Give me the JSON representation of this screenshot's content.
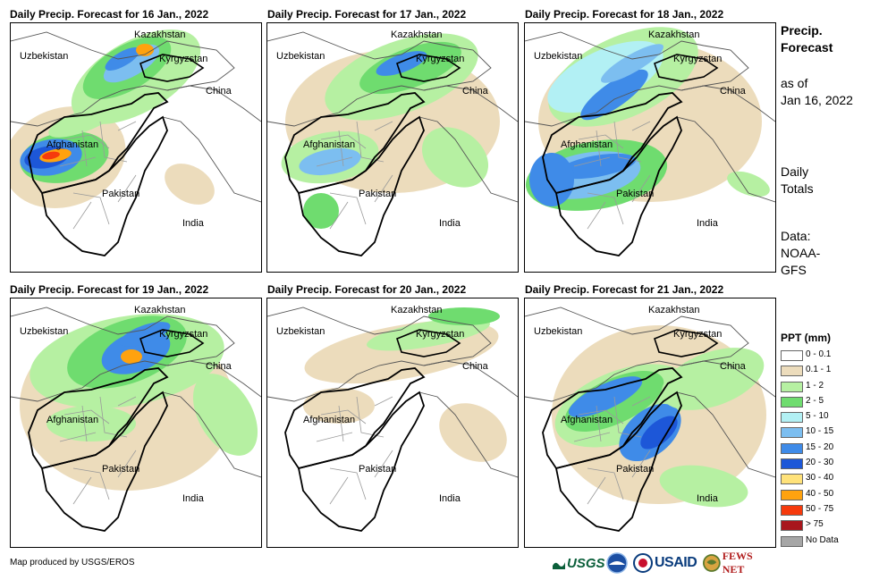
{
  "panels": [
    {
      "title": "Daily Precip. Forecast for 16 Jan., 2022",
      "intensity": "high"
    },
    {
      "title": "Daily Precip. Forecast for 17 Jan., 2022",
      "intensity": "medium"
    },
    {
      "title": "Daily Precip. Forecast for 18 Jan., 2022",
      "intensity": "high-west"
    },
    {
      "title": "Daily Precip. Forecast for 19 Jan., 2022",
      "intensity": "medium-north"
    },
    {
      "title": "Daily Precip. Forecast for 20 Jan., 2022",
      "intensity": "low"
    },
    {
      "title": "Daily Precip. Forecast for 21 Jan., 2022",
      "intensity": "medium-central"
    }
  ],
  "country_labels": {
    "kazakhstan": "Kazakhstan",
    "uzbekistan": "Uzbekistan",
    "kyrgyzstan": "Kyrgyzstan",
    "china": "China",
    "afghanistan": "Afghanistan",
    "pakistan": "Pakistan",
    "india": "India"
  },
  "sidebar": {
    "heading_line1": "Precip.",
    "heading_line2": "Forecast",
    "asof_line1": "as of",
    "asof_line2": "Jan 16, 2022",
    "totals_line1": "Daily",
    "totals_line2": "Totals",
    "data_line1": "Data:",
    "data_line2": "NOAA-",
    "data_line3": "GFS"
  },
  "legend": {
    "title": "PPT (mm)",
    "items": [
      {
        "label": "0 - 0.1",
        "color": "#ffffff"
      },
      {
        "label": "0.1 - 1",
        "color": "#ecdcbc"
      },
      {
        "label": "1 - 2",
        "color": "#b6f0a2"
      },
      {
        "label": "2 - 5",
        "color": "#6fdc6f"
      },
      {
        "label": "5 - 10",
        "color": "#b2f0f4"
      },
      {
        "label": "10 - 15",
        "color": "#7cbef0"
      },
      {
        "label": "15 - 20",
        "color": "#3f8be8"
      },
      {
        "label": "20 - 30",
        "color": "#1d57d8"
      },
      {
        "label": "30 - 40",
        "color": "#ffe27a"
      },
      {
        "label": "40 - 50",
        "color": "#ffa20e"
      },
      {
        "label": "50 - 75",
        "color": "#f63a0c"
      },
      {
        "label": "> 75",
        "color": "#a8161c"
      },
      {
        "label": "No Data",
        "color": "#a6a6a6"
      }
    ]
  },
  "credit": "Map produced by USGS/EROS",
  "logos": {
    "usgs": "USGS",
    "usaid": "USAID",
    "fewsnet": "FEWS NET"
  }
}
